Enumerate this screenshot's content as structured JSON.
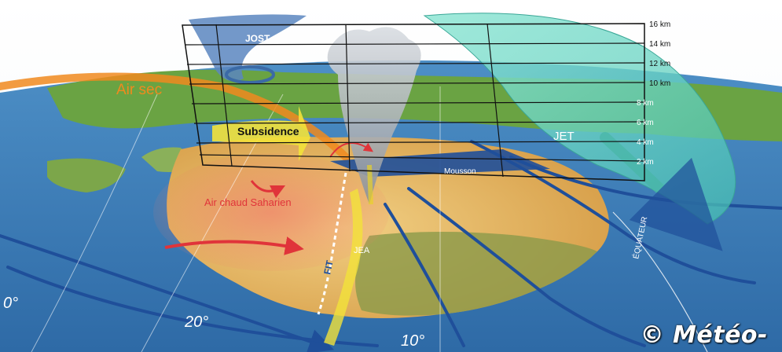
{
  "labels": {
    "air_sec": "Air sec",
    "jost": "JOST",
    "subsidence": "Subsidence",
    "jet": "JET",
    "mousson": "Mousson",
    "air_chaud": "Air chaud Saharien",
    "fit": "FIT",
    "jea": "JEA",
    "equateur": "ÉQUATEUR"
  },
  "altitude_ticks": [
    "16 km",
    "14 km",
    "12 km",
    "10 km",
    "8 km",
    "6 km",
    "4 km",
    "2 km"
  ],
  "longitude_labels": [
    "20°",
    "10°",
    "0°"
  ],
  "copyright": "© Météo-",
  "colors": {
    "ocean": "#3f7fb6",
    "land_green": "#5f9a3a",
    "sahara": "#e6b860",
    "air_sec": "#f08a1e",
    "subsidence": "#f2e23a",
    "jet": "#6fd6c2",
    "jost": "#5a86c0",
    "hot_air": "#e8443a",
    "isobar": "#1f4f9a"
  }
}
